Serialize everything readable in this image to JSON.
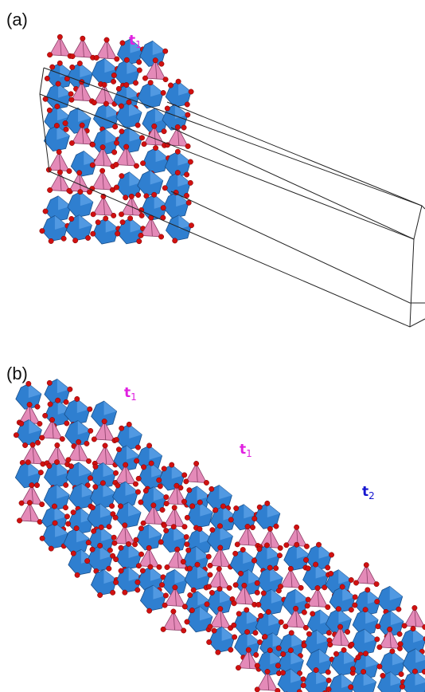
{
  "panels": [
    {
      "tag": "(a)",
      "labels": [
        {
          "letter": "t",
          "sub": "1"
        }
      ]
    },
    {
      "tag": "(b)",
      "labels": [
        {
          "letter": "t",
          "sub": "1"
        },
        {
          "letter": "t",
          "sub": "1"
        },
        {
          "letter": "t",
          "sub": "2"
        }
      ]
    }
  ]
}
